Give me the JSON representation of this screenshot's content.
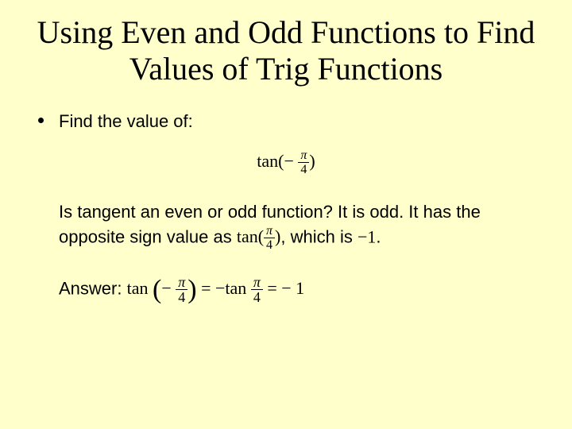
{
  "colors": {
    "background": "#ffffcc",
    "text": "#000000"
  },
  "title": "Using Even and Odd Functions to Find Values of Trig Functions",
  "prompt": "Find the value of:",
  "expr1_fn": "tan(",
  "expr1_neg": "−",
  "expr1_num": "π",
  "expr1_den": "4",
  "expr1_close": ")",
  "q_part1": "Is tangent an even or odd function?  It is odd.  It has the opposite sign value as ",
  "q_tan": "tan(",
  "q_num": "π",
  "q_den": "4",
  "q_close": ")",
  "q_part2": ", which is ",
  "q_neg1": "−1",
  "q_part3": ".",
  "ans_label": "Answer:  ",
  "ans_tan": "tan",
  "ans_neg": "−",
  "ans_num": "π",
  "ans_den": "4",
  "ans_eq1": " = ",
  "ans_negtan": "−tan",
  "ans_num2": "π",
  "ans_den2": "4",
  "ans_eq2": " = − 1"
}
